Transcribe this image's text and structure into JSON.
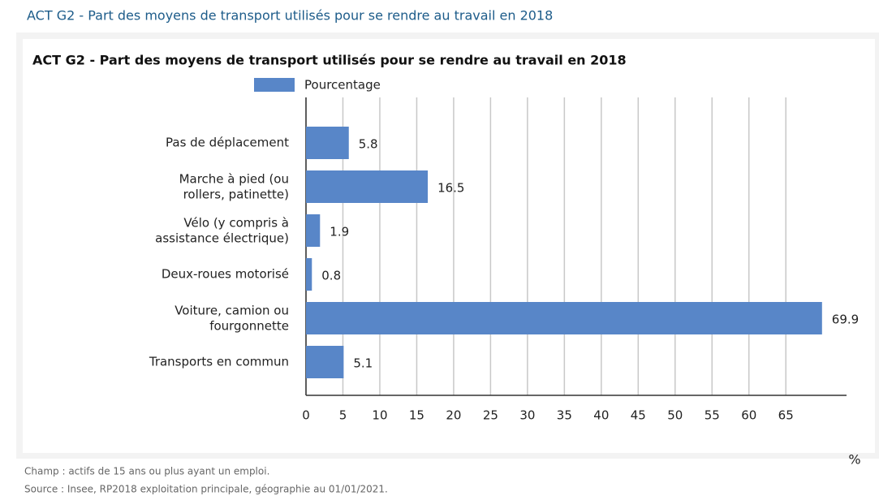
{
  "header": {
    "title": "ACT G2 - Part des moyens de transport utilisés pour se rendre au travail en 2018"
  },
  "chart_data": {
    "type": "bar",
    "orientation": "horizontal",
    "title": "ACT G2 - Part des moyens de transport utilisés pour se rendre au travail en 2018",
    "categories": [
      "Pas de déplacement",
      "Marche à pied (ou\nrollers, patinette)",
      "Vélo (y compris à\nassistance électrique)",
      "Deux-roues motorisé",
      "Voiture, camion ou\nfourgonnette",
      "Transports en commun"
    ],
    "series": [
      {
        "name": "Pourcentage",
        "color": "#5886c8",
        "values": [
          5.8,
          16.5,
          1.9,
          0.8,
          69.9,
          5.1
        ]
      }
    ],
    "xlim": [
      0,
      73
    ],
    "xticks": [
      0,
      5,
      10,
      15,
      20,
      25,
      30,
      35,
      40,
      45,
      50,
      55,
      60,
      65
    ],
    "x_unit": "%",
    "grid": true
  },
  "footer": {
    "notes": [
      "Champ : actifs de 15 ans ou plus ayant un emploi.",
      "Source : Insee, RP2018 exploitation principale, géographie au 01/01/2021."
    ]
  }
}
